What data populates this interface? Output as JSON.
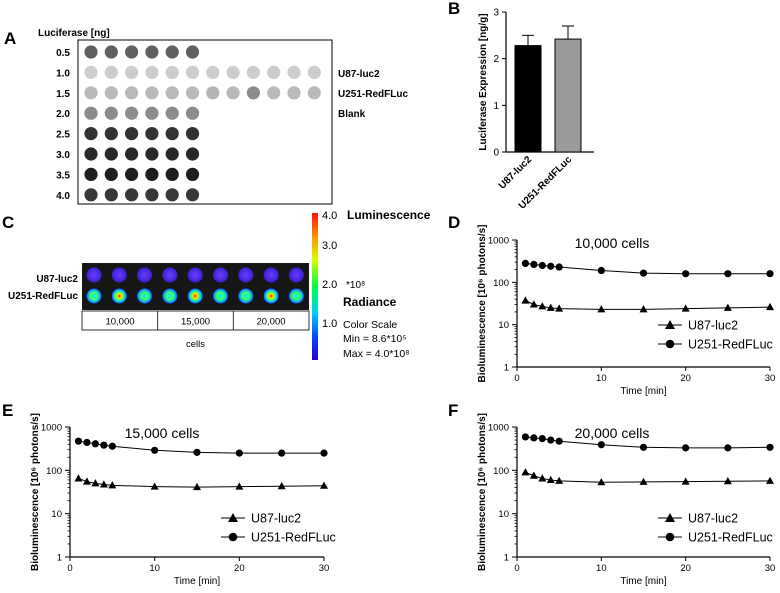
{
  "panels": {
    "A": "A",
    "B": "B",
    "C": "C",
    "D": "D",
    "E": "E",
    "F": "F"
  },
  "panel_a": {
    "header": "Luciferase [ng]",
    "row_labels": [
      "0.5",
      "1.0",
      "1.5",
      "2.0",
      "2.5",
      "3.0",
      "3.5",
      "4.0"
    ],
    "legend": {
      "u87": "U87-luc2",
      "u251": "U251-RedFLuc",
      "blank": "Blank"
    },
    "dot_gray": [
      [
        96,
        96,
        96,
        96,
        96,
        96,
        -1,
        -1,
        -1,
        -1,
        -1,
        -1
      ],
      [
        205,
        205,
        205,
        205,
        205,
        205,
        205,
        205,
        205,
        205,
        205,
        205
      ],
      [
        185,
        185,
        185,
        185,
        185,
        185,
        180,
        185,
        140,
        185,
        185,
        185
      ],
      [
        140,
        140,
        140,
        140,
        140,
        140,
        -1,
        -1,
        -1,
        -1,
        -1,
        -1
      ],
      [
        50,
        50,
        50,
        50,
        50,
        50,
        -1,
        -1,
        -1,
        -1,
        -1,
        -1
      ],
      [
        40,
        40,
        40,
        40,
        40,
        40,
        -1,
        -1,
        -1,
        -1,
        -1,
        -1
      ],
      [
        30,
        30,
        30,
        30,
        30,
        30,
        -1,
        -1,
        -1,
        -1,
        -1,
        -1
      ],
      [
        55,
        55,
        55,
        55,
        55,
        55,
        -1,
        -1,
        -1,
        -1,
        -1,
        -1
      ]
    ]
  },
  "panel_c": {
    "rows": [
      "U87-luc2",
      "U251-RedFLuc"
    ],
    "cell_counts": [
      "10,000",
      "15,000",
      "20,000"
    ],
    "cells_label": "cells",
    "colorbar_ticks": [
      "4.0",
      "3.0",
      "2.0",
      "1.0"
    ],
    "multiplier": "*10⁸",
    "luminescence": "Luminescence",
    "radiance": "Radiance",
    "color_scale": "Color Scale",
    "min_label": "Min = 8.6*10⁵",
    "max_label": "Max = 4.0*10⁸"
  },
  "chart_data": [
    {
      "panel": "B",
      "type": "bar",
      "categories": [
        "U87-luc2",
        "U251-RedFLuc"
      ],
      "values": [
        2.28,
        2.42
      ],
      "errors": [
        0.22,
        0.28
      ],
      "colors": [
        "#000000",
        "#9a9a9a"
      ],
      "ylabel": "Luciferase Expression [ng/g]",
      "ylim": [
        0,
        3
      ],
      "yticks": [
        "0",
        "1",
        "2",
        "3"
      ]
    },
    {
      "panel": "D",
      "type": "line",
      "title": "10,000 cells",
      "xlabel": "Time [min]",
      "ylabel": "Bioluminescence [10⁶ photons/s]",
      "yscale": "log",
      "ylim": [
        1,
        1000
      ],
      "xlim": [
        0,
        30
      ],
      "xticks": [
        "0",
        "10",
        "20",
        "30"
      ],
      "yticks": [
        "1",
        "10",
        "100",
        "1000"
      ],
      "x": [
        1,
        2,
        3,
        4,
        5,
        10,
        15,
        20,
        25,
        30
      ],
      "series": [
        {
          "name": "U87-luc2",
          "marker": "triangle",
          "values": [
            37,
            30,
            27,
            25,
            24,
            23,
            23,
            24,
            25,
            26
          ]
        },
        {
          "name": "U251-RedFLuc",
          "marker": "circle",
          "values": [
            280,
            265,
            250,
            240,
            230,
            190,
            165,
            160,
            160,
            160
          ]
        }
      ]
    },
    {
      "panel": "E",
      "type": "line",
      "title": "15,000 cells",
      "xlabel": "Time [min]",
      "ylabel": "Bioluminescence [10⁶ photons/s]",
      "yscale": "log",
      "ylim": [
        1,
        1000
      ],
      "xlim": [
        0,
        30
      ],
      "xticks": [
        "0",
        "10",
        "20",
        "30"
      ],
      "yticks": [
        "1",
        "10",
        "100",
        "1000"
      ],
      "x": [
        1,
        2,
        3,
        4,
        5,
        10,
        15,
        20,
        25,
        30
      ],
      "series": [
        {
          "name": "U87-luc2",
          "marker": "triangle",
          "values": [
            65,
            55,
            50,
            47,
            45,
            42,
            41,
            42,
            43,
            44
          ]
        },
        {
          "name": "U251-RedFLuc",
          "marker": "circle",
          "values": [
            470,
            440,
            410,
            380,
            360,
            290,
            260,
            250,
            250,
            250
          ]
        }
      ]
    },
    {
      "panel": "F",
      "type": "line",
      "title": "20,000 cells",
      "xlabel": "Time [min]",
      "ylabel": "Bioluminescence [10⁶ photons/s]",
      "yscale": "log",
      "ylim": [
        1,
        1000
      ],
      "xlim": [
        0,
        30
      ],
      "xticks": [
        "0",
        "10",
        "20",
        "30"
      ],
      "yticks": [
        "1",
        "10",
        "100",
        "1000"
      ],
      "x": [
        1,
        2,
        3,
        4,
        5,
        10,
        15,
        20,
        25,
        30
      ],
      "series": [
        {
          "name": "U87-luc2",
          "marker": "triangle",
          "values": [
            90,
            75,
            65,
            60,
            57,
            53,
            54,
            55,
            56,
            57
          ]
        },
        {
          "name": "U251-RedFLuc",
          "marker": "circle",
          "values": [
            590,
            560,
            540,
            500,
            470,
            390,
            340,
            330,
            330,
            340
          ]
        }
      ]
    }
  ]
}
